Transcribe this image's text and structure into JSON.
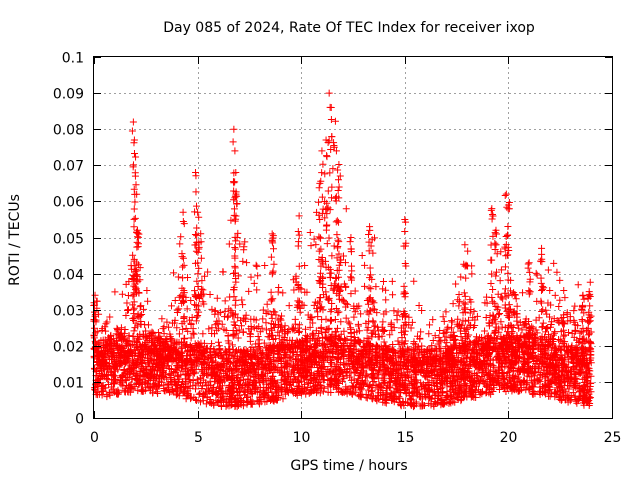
{
  "chart_data": {
    "type": "scatter",
    "title": "Day 085 of 2024, Rate Of TEC Index for receiver ixop",
    "xlabel": "GPS time / hours",
    "ylabel": "ROTI / TECUs",
    "xlim": [
      0,
      25
    ],
    "ylim": [
      0,
      0.1
    ],
    "xticks": [
      0,
      5,
      10,
      15,
      20,
      25
    ],
    "xtick_labels": [
      "0",
      "5",
      "10",
      "15",
      "20",
      "25"
    ],
    "yticks": [
      0,
      0.01,
      0.02,
      0.03,
      0.04,
      0.05,
      0.06,
      0.07,
      0.08,
      0.09,
      0.1
    ],
    "ytick_labels": [
      "0",
      "0.01",
      "0.02",
      "0.03",
      "0.04",
      "0.05",
      "0.06",
      "0.07",
      "0.08",
      "0.09",
      "0.1"
    ],
    "grid": true,
    "marker": "+",
    "color": "#ff0000",
    "x_data_end": 24,
    "envelope_x": [
      0,
      0.1,
      0.5,
      1,
      1.5,
      1.9,
      2.5,
      3,
      3.5,
      4,
      4.3,
      4.7,
      5,
      5.5,
      6,
      6.5,
      6.8,
      7,
      7.5,
      8,
      8.6,
      9,
      9.5,
      10,
      10.5,
      11,
      11.2,
      11.5,
      12,
      12.5,
      13,
      13.5,
      14,
      14.5,
      15,
      15.5,
      16,
      16.5,
      17,
      17.5,
      18,
      18.5,
      19,
      19.3,
      19.6,
      20,
      20.5,
      21,
      21.5,
      22,
      22.5,
      23,
      23.5,
      24
    ],
    "envelope_y_max": [
      0.033,
      0.034,
      0.025,
      0.036,
      0.035,
      0.082,
      0.038,
      0.027,
      0.028,
      0.046,
      0.057,
      0.043,
      0.068,
      0.047,
      0.045,
      0.045,
      0.08,
      0.06,
      0.04,
      0.045,
      0.051,
      0.039,
      0.032,
      0.056,
      0.052,
      0.065,
      0.074,
      0.09,
      0.068,
      0.045,
      0.047,
      0.053,
      0.037,
      0.04,
      0.055,
      0.036,
      0.032,
      0.034,
      0.036,
      0.038,
      0.048,
      0.042,
      0.036,
      0.058,
      0.05,
      0.062,
      0.045,
      0.035,
      0.043,
      0.047,
      0.04,
      0.045,
      0.035,
      0.038
    ],
    "peaks": [
      {
        "x": 0.05,
        "y": 0.034
      },
      {
        "x": 1.9,
        "y": 0.082
      },
      {
        "x": 1.95,
        "y": 0.077
      },
      {
        "x": 2.0,
        "y": 0.067
      },
      {
        "x": 2.1,
        "y": 0.052
      },
      {
        "x": 4.3,
        "y": 0.057
      },
      {
        "x": 4.9,
        "y": 0.068
      },
      {
        "x": 5.0,
        "y": 0.057
      },
      {
        "x": 6.75,
        "y": 0.08
      },
      {
        "x": 6.8,
        "y": 0.074
      },
      {
        "x": 6.85,
        "y": 0.062
      },
      {
        "x": 8.6,
        "y": 0.051
      },
      {
        "x": 9.9,
        "y": 0.056
      },
      {
        "x": 10.9,
        "y": 0.065
      },
      {
        "x": 11.0,
        "y": 0.074
      },
      {
        "x": 11.2,
        "y": 0.077
      },
      {
        "x": 11.35,
        "y": 0.09
      },
      {
        "x": 11.45,
        "y": 0.086
      },
      {
        "x": 11.7,
        "y": 0.074
      },
      {
        "x": 11.8,
        "y": 0.066
      },
      {
        "x": 12.4,
        "y": 0.05
      },
      {
        "x": 13.3,
        "y": 0.053
      },
      {
        "x": 15.0,
        "y": 0.055
      },
      {
        "x": 17.9,
        "y": 0.048
      },
      {
        "x": 19.2,
        "y": 0.058
      },
      {
        "x": 19.4,
        "y": 0.052
      },
      {
        "x": 19.9,
        "y": 0.062
      },
      {
        "x": 20.0,
        "y": 0.059
      },
      {
        "x": 21.0,
        "y": 0.043
      },
      {
        "x": 21.6,
        "y": 0.047
      },
      {
        "x": 23.6,
        "y": 0.034
      },
      {
        "x": 23.9,
        "y": 0.035
      }
    ],
    "baseline_median": 0.013,
    "baseline_min": 0.003
  }
}
